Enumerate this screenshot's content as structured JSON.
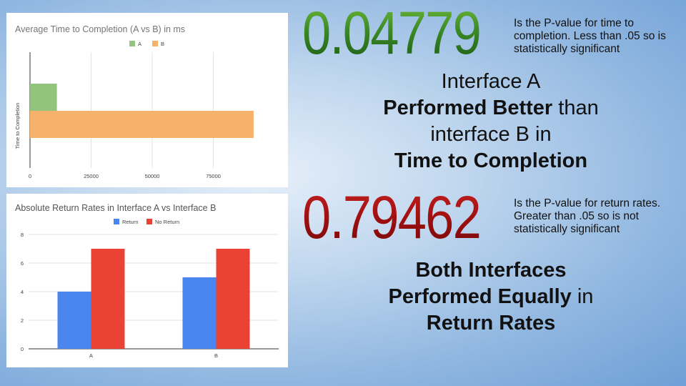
{
  "chart_data": [
    {
      "type": "bar",
      "orientation": "horizontal",
      "title": "Average Time to Completion (A vs B) in ms",
      "ylabel": "Time to Completion",
      "xlabel": "",
      "categories": [
        "Time to Completion"
      ],
      "series": [
        {
          "name": "A",
          "values": [
            11000
          ],
          "color": "#93c47d"
        },
        {
          "name": "B",
          "values": [
            91500
          ],
          "color": "#f6b26b"
        }
      ],
      "xlim": [
        0,
        100000
      ],
      "xticks": [
        "0",
        "25000",
        "50000",
        "75000"
      ],
      "grid": true,
      "legend": "top"
    },
    {
      "type": "bar",
      "orientation": "vertical",
      "title": "Absolute Return Rates in Interface A vs Interface B",
      "categories": [
        "A",
        "B"
      ],
      "series": [
        {
          "name": "Return",
          "values": [
            4,
            5
          ],
          "color": "#4a86f0"
        },
        {
          "name": "No Return",
          "values": [
            7,
            7
          ],
          "color": "#ea4335"
        }
      ],
      "ylim": [
        0,
        8
      ],
      "yticks": [
        "0",
        "2",
        "4",
        "6",
        "8"
      ],
      "grid": true,
      "legend": "top"
    }
  ],
  "stats": {
    "completion": {
      "pvalue": "0.04779",
      "note": "Is the P-value for time to completion. Less than .05 so is statistically significant",
      "color": "#3b8a26",
      "conclusion": {
        "line1": "Interface A",
        "line2_bold": "Performed Better",
        "line2_rest": " than",
        "line3": "interface B in",
        "line4_bold": "Time to Completion"
      }
    },
    "return": {
      "pvalue": "0.79462",
      "note": "Is the P-value for return rates. Greater than .05 so is not statistically significant",
      "color": "#a01010",
      "conclusion": {
        "line1_bold": "Both Interfaces",
        "line2_bold": "Performed Equally",
        "line2_rest": " in",
        "line3_bold": "Return Rates"
      }
    }
  }
}
